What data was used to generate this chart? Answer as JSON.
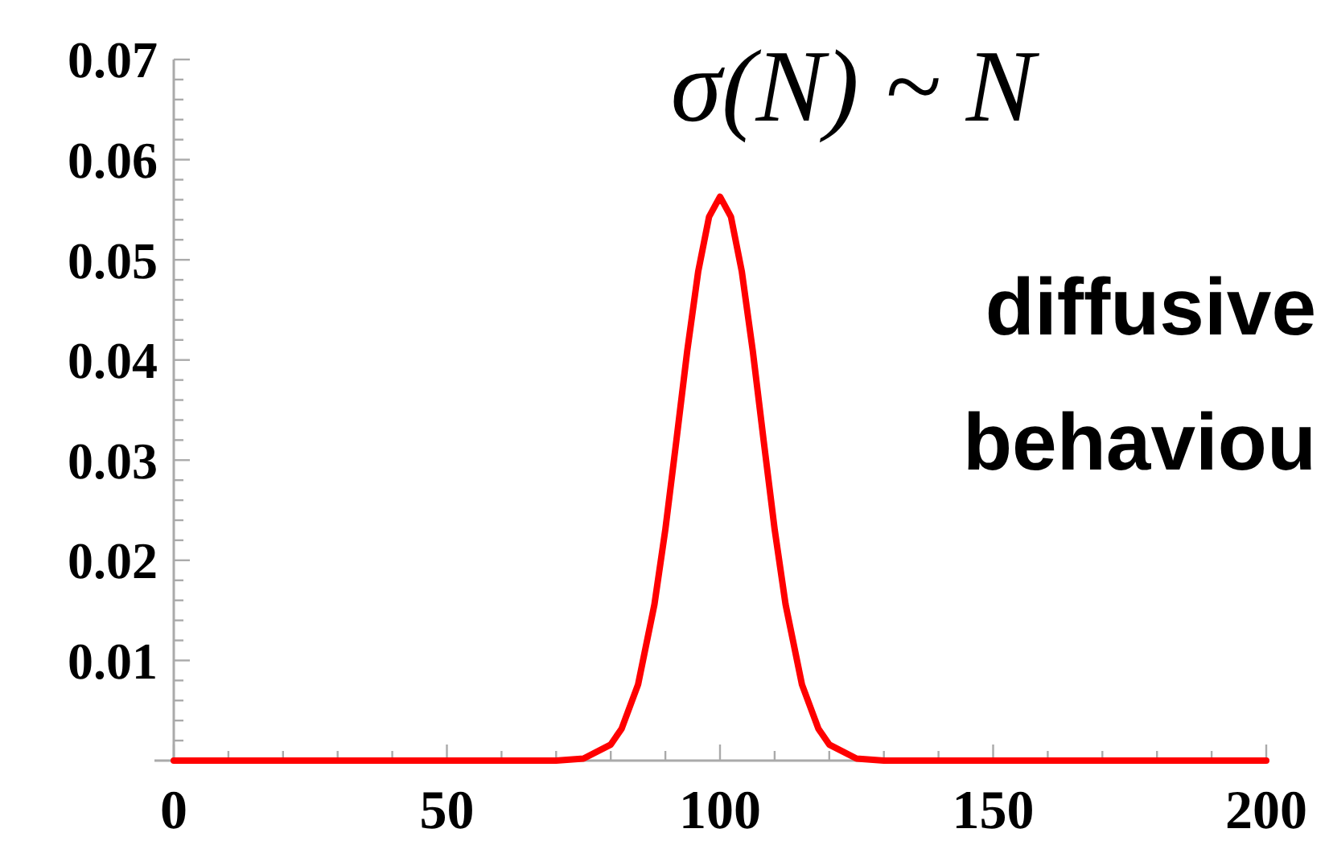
{
  "chart_data": {
    "type": "line",
    "title": "σ(N) ~ N",
    "annotations": [
      "diffusive",
      "behaviou"
    ],
    "x": [
      0,
      50,
      70,
      75,
      80,
      82,
      85,
      88,
      90,
      92,
      94,
      96,
      98,
      100,
      102,
      104,
      106,
      108,
      110,
      112,
      115,
      118,
      120,
      125,
      130,
      150,
      200
    ],
    "series": [
      {
        "color": "#ff0000",
        "values": [
          0,
          0,
          0,
          0.0002,
          0.0016,
          0.0032,
          0.0076,
          0.0156,
          0.0231,
          0.0319,
          0.0409,
          0.0488,
          0.0543,
          0.0563,
          0.0543,
          0.0488,
          0.0409,
          0.0319,
          0.0231,
          0.0156,
          0.0076,
          0.0032,
          0.0016,
          0.0002,
          0,
          0,
          0
        ]
      }
    ],
    "xlim": [
      0,
      200
    ],
    "xticks": [
      0,
      {
        "value": 10,
        "label": null
      },
      {
        "value": 20,
        "label": null
      },
      {
        "value": 30,
        "label": null
      },
      {
        "value": 40,
        "label": null
      },
      50,
      {
        "value": 60,
        "label": null
      },
      {
        "value": 70,
        "label": null
      },
      {
        "value": 80,
        "label": null
      },
      {
        "value": 90,
        "label": null
      },
      100,
      {
        "value": 110,
        "label": null
      },
      {
        "value": 120,
        "label": null
      },
      {
        "value": 130,
        "label": null
      },
      {
        "value": 140,
        "label": null
      },
      150,
      {
        "value": 160,
        "label": null
      },
      {
        "value": 170,
        "label": null
      },
      {
        "value": 180,
        "label": null
      },
      {
        "value": 190,
        "label": null
      },
      200
    ],
    "ylim": [
      0,
      0.07
    ],
    "yticks": [
      {
        "value": 0.002,
        "label": null
      },
      {
        "value": 0.004,
        "label": null
      },
      {
        "value": 0.006,
        "label": null
      },
      {
        "value": 0.008,
        "label": null
      },
      0.01,
      {
        "value": 0.012,
        "label": null
      },
      {
        "value": 0.014,
        "label": null
      },
      {
        "value": 0.016,
        "label": null
      },
      {
        "value": 0.018,
        "label": null
      },
      0.02,
      {
        "value": 0.022,
        "label": null
      },
      {
        "value": 0.024,
        "label": null
      },
      {
        "value": 0.026,
        "label": null
      },
      {
        "value": 0.028,
        "label": null
      },
      0.03,
      {
        "value": 0.032,
        "label": null
      },
      {
        "value": 0.034,
        "label": null
      },
      {
        "value": 0.036,
        "label": null
      },
      {
        "value": 0.038,
        "label": null
      },
      0.04,
      {
        "value": 0.042,
        "label": null
      },
      {
        "value": 0.044,
        "label": null
      },
      {
        "value": 0.046,
        "label": null
      },
      {
        "value": 0.048,
        "label": null
      },
      0.05,
      {
        "value": 0.052,
        "label": null
      },
      {
        "value": 0.054,
        "label": null
      },
      {
        "value": 0.056,
        "label": null
      },
      {
        "value": 0.058,
        "label": null
      },
      0.06,
      {
        "value": 0.062,
        "label": null
      },
      {
        "value": 0.064,
        "label": null
      },
      {
        "value": 0.066,
        "label": null
      },
      {
        "value": 0.068,
        "label": null
      },
      0.07
    ]
  }
}
